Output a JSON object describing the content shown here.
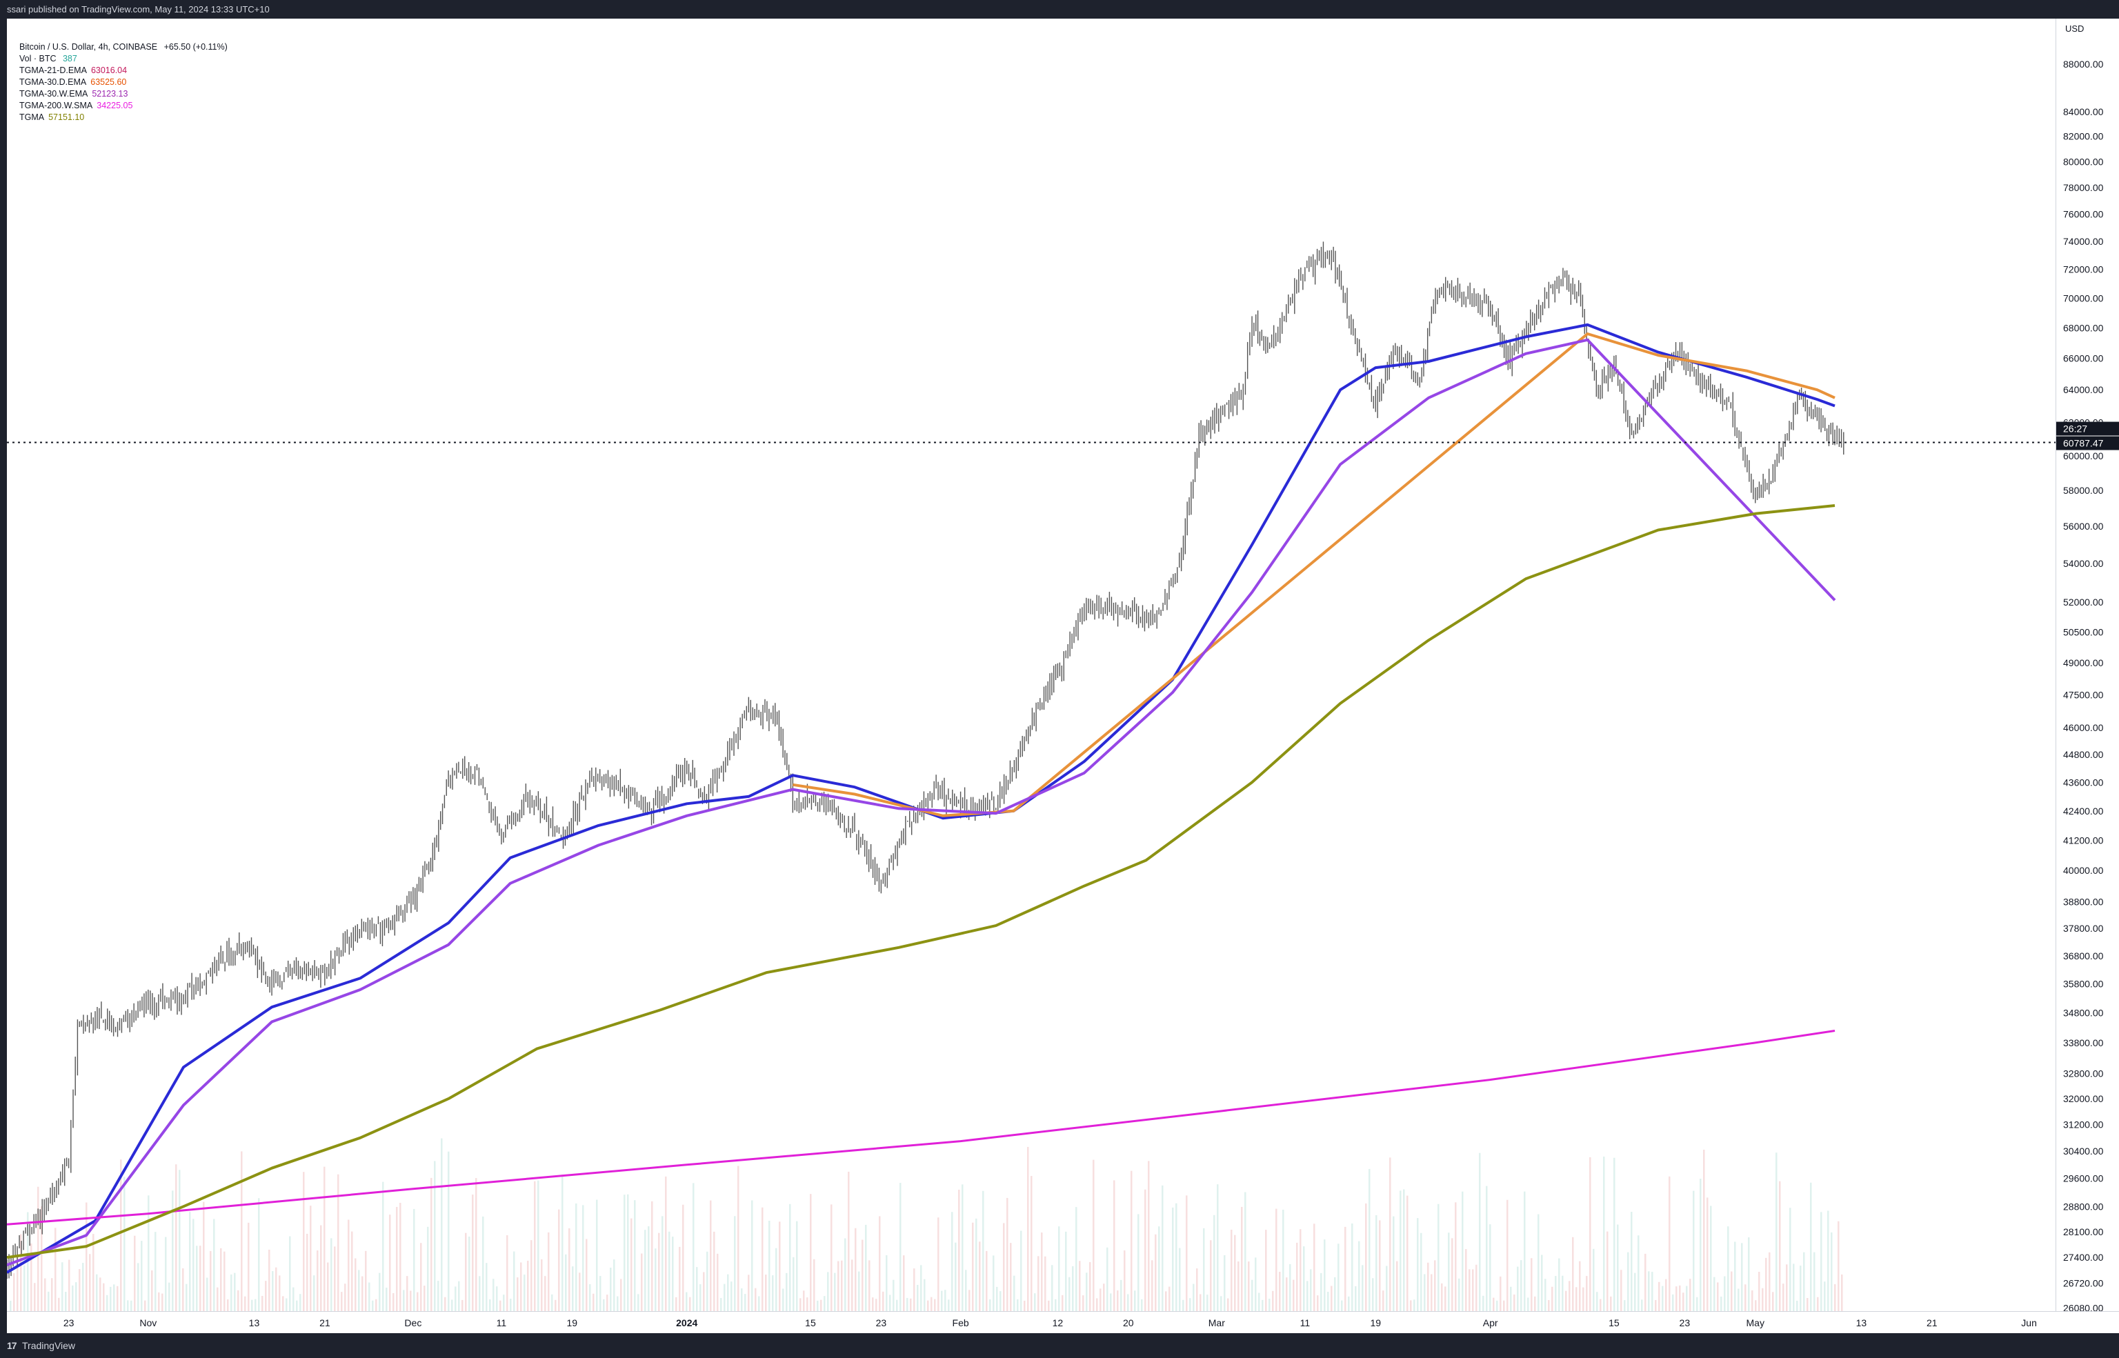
{
  "publish_bar": "ssari published on TradingView.com, May 11, 2024 13:33 UTC+10",
  "footer": {
    "logo": "17",
    "brand": "TradingView"
  },
  "price_axis": {
    "currency": "USD"
  },
  "legend": {
    "title": "Bitcoin / U.S. Dollar, 4h, COINBASE",
    "change": "+65.50 (+0.11%)",
    "vol_label": "Vol · BTC",
    "vol_value": "387",
    "indicators": [
      {
        "name": "TGMA-21-D.EMA",
        "value": "63016.04",
        "color": "#c2185b"
      },
      {
        "name": "TGMA-30.D.EMA",
        "value": "63525.60",
        "color": "#e65100"
      },
      {
        "name": "TGMA-30.W.EMA",
        "value": "52123.13",
        "color": "#9c27b0"
      },
      {
        "name": "TGMA-200.W.SMA",
        "value": "34225.05",
        "color": "#e91ee0"
      },
      {
        "name": "TGMA",
        "value": "57151.10",
        "color": "#808000"
      }
    ]
  },
  "badges": {
    "countdown": "26:27",
    "last_price": "60787.47"
  },
  "colors": {
    "candle": "#555555",
    "dark_blue": "#2a2ad6",
    "purple": "#8c1ae6",
    "orange": "#e8923a",
    "yellow": "#d8d42a",
    "rose": "#c06878",
    "magenta": "#e020d8",
    "olive": "#8c9212",
    "violet": "#9646e6",
    "last_price_line": "#131722"
  },
  "chart_data": {
    "type": "line",
    "title": "Bitcoin / U.S. Dollar, 4h, COINBASE",
    "y_scale": "log",
    "ylim": [
      26000,
      92000
    ],
    "x_range": [
      "2023-10-16",
      "2024-06-04"
    ],
    "price_ticks": [
      88000,
      84000,
      82000,
      80000,
      78000,
      76000,
      74000,
      72000,
      70000,
      68000,
      66000,
      64000,
      62000,
      60000,
      58000,
      56000,
      54000,
      52000,
      50500,
      49000,
      47500,
      46000,
      44800,
      43600,
      42400,
      41200,
      40000,
      38800,
      37800,
      36800,
      35800,
      34800,
      33800,
      32800,
      32000,
      31200,
      30400,
      29600,
      28800,
      28100,
      27400,
      26720,
      26080
    ],
    "time_ticks": [
      {
        "label": "23",
        "date": "2023-10-23"
      },
      {
        "label": "Nov",
        "date": "2023-11-01"
      },
      {
        "label": "13",
        "date": "2023-11-13"
      },
      {
        "label": "21",
        "date": "2023-11-21"
      },
      {
        "label": "Dec",
        "date": "2023-12-01"
      },
      {
        "label": "11",
        "date": "2023-12-11"
      },
      {
        "label": "19",
        "date": "2023-12-19"
      },
      {
        "label": "2024",
        "date": "2024-01-01"
      },
      {
        "label": "15",
        "date": "2024-01-15"
      },
      {
        "label": "23",
        "date": "2024-01-23"
      },
      {
        "label": "Feb",
        "date": "2024-02-01"
      },
      {
        "label": "12",
        "date": "2024-02-12"
      },
      {
        "label": "20",
        "date": "2024-02-20"
      },
      {
        "label": "Mar",
        "date": "2024-03-01"
      },
      {
        "label": "11",
        "date": "2024-03-11"
      },
      {
        "label": "19",
        "date": "2024-03-19"
      },
      {
        "label": "Apr",
        "date": "2024-04-01"
      },
      {
        "label": "15",
        "date": "2024-04-15"
      },
      {
        "label": "23",
        "date": "2024-04-23"
      },
      {
        "label": "May",
        "date": "2024-05-01"
      },
      {
        "label": "13",
        "date": "2024-05-13"
      },
      {
        "label": "21",
        "date": "2024-05-21"
      },
      {
        "label": "Jun",
        "date": "2024-06-01"
      }
    ],
    "last_price": 60787.47,
    "price": [
      [
        "2023-10-16",
        27200
      ],
      [
        "2023-10-20",
        28600
      ],
      [
        "2023-10-23",
        30200
      ],
      [
        "2023-10-24",
        34200
      ],
      [
        "2023-10-26",
        34600
      ],
      [
        "2023-10-29",
        34400
      ],
      [
        "2023-11-01",
        35200
      ],
      [
        "2023-11-05",
        35300
      ],
      [
        "2023-11-09",
        36600
      ],
      [
        "2023-11-12",
        37200
      ],
      [
        "2023-11-15",
        35800
      ],
      [
        "2023-11-18",
        36400
      ],
      [
        "2023-11-21",
        36200
      ],
      [
        "2023-11-24",
        37600
      ],
      [
        "2023-11-28",
        37800
      ],
      [
        "2023-12-01",
        38900
      ],
      [
        "2023-12-03",
        40200
      ],
      [
        "2023-12-05",
        43900
      ],
      [
        "2023-12-08",
        44200
      ],
      [
        "2023-12-11",
        41300
      ],
      [
        "2023-12-14",
        43000
      ],
      [
        "2023-12-18",
        41200
      ],
      [
        "2023-12-21",
        43800
      ],
      [
        "2023-12-24",
        43500
      ],
      [
        "2023-12-28",
        42400
      ],
      [
        "2024-01-01",
        44300
      ],
      [
        "2024-01-03",
        42800
      ],
      [
        "2024-01-08",
        46900
      ],
      [
        "2024-01-11",
        46600
      ],
      [
        "2024-01-13",
        42800
      ],
      [
        "2024-01-17",
        42700
      ],
      [
        "2024-01-20",
        41500
      ],
      [
        "2024-01-23",
        39500
      ],
      [
        "2024-01-26",
        41800
      ],
      [
        "2024-01-29",
        43200
      ],
      [
        "2024-02-01",
        42600
      ],
      [
        "2024-02-05",
        42700
      ],
      [
        "2024-02-08",
        45200
      ],
      [
        "2024-02-10",
        47100
      ],
      [
        "2024-02-12",
        48500
      ],
      [
        "2024-02-15",
        51800
      ],
      [
        "2024-02-20",
        51500
      ],
      [
        "2024-02-23",
        51000
      ],
      [
        "2024-02-26",
        54500
      ],
      [
        "2024-02-28",
        61200
      ],
      [
        "2024-03-01",
        62200
      ],
      [
        "2024-03-04",
        64000
      ],
      [
        "2024-03-05",
        68300
      ],
      [
        "2024-03-07",
        66800
      ],
      [
        "2024-03-11",
        72200
      ],
      [
        "2024-03-14",
        73000
      ],
      [
        "2024-03-16",
        68500
      ],
      [
        "2024-03-19",
        62800
      ],
      [
        "2024-03-21",
        66700
      ],
      [
        "2024-03-24",
        64700
      ],
      [
        "2024-03-26",
        70800
      ],
      [
        "2024-03-29",
        70100
      ],
      [
        "2024-04-01",
        69500
      ],
      [
        "2024-04-03",
        65900
      ],
      [
        "2024-04-06",
        68800
      ],
      [
        "2024-04-09",
        71500
      ],
      [
        "2024-04-11",
        70500
      ],
      [
        "2024-04-13",
        63900
      ],
      [
        "2024-04-15",
        65500
      ],
      [
        "2024-04-17",
        61200
      ],
      [
        "2024-04-19",
        63500
      ],
      [
        "2024-04-22",
        66400
      ],
      [
        "2024-04-25",
        64300
      ],
      [
        "2024-04-28",
        63400
      ],
      [
        "2024-05-01",
        57500
      ],
      [
        "2024-05-03",
        59000
      ],
      [
        "2024-05-06",
        63500
      ],
      [
        "2024-05-08",
        62100
      ],
      [
        "2024-05-10",
        61000
      ],
      [
        "2024-05-11",
        60787
      ]
    ],
    "series": [
      {
        "name": "TGMA-21-D.EMA",
        "color": "#2a2ad6",
        "points": [
          [
            "2023-10-16",
            27000
          ],
          [
            "2023-10-26",
            28400
          ],
          [
            "2023-11-05",
            33000
          ],
          [
            "2023-11-15",
            35000
          ],
          [
            "2023-11-25",
            36000
          ],
          [
            "2023-12-05",
            38000
          ],
          [
            "2023-12-12",
            40500
          ],
          [
            "2023-12-22",
            41800
          ],
          [
            "2024-01-01",
            42700
          ],
          [
            "2024-01-08",
            43000
          ],
          [
            "2024-01-13",
            43900
          ],
          [
            "2024-01-20",
            43400
          ],
          [
            "2024-01-30",
            42100
          ],
          [
            "2024-02-07",
            42400
          ],
          [
            "2024-02-15",
            44500
          ],
          [
            "2024-02-25",
            48200
          ],
          [
            "2024-03-05",
            55000
          ],
          [
            "2024-03-15",
            64000
          ],
          [
            "2024-03-19",
            65400
          ],
          [
            "2024-03-25",
            65800
          ],
          [
            "2024-04-05",
            67400
          ],
          [
            "2024-04-12",
            68200
          ],
          [
            "2024-04-20",
            66400
          ],
          [
            "2024-04-30",
            64800
          ],
          [
            "2024-05-08",
            63400
          ],
          [
            "2024-05-10",
            63000
          ]
        ]
      },
      {
        "name": "TGMA-30.D.EMA",
        "color": "#e8923a",
        "points": [
          [
            "2024-01-13",
            43500
          ],
          [
            "2024-01-20",
            43100
          ],
          [
            "2024-01-30",
            42200
          ],
          [
            "2024-02-07",
            42400
          ],
          [
            "2024-04-12",
            67600
          ],
          [
            "2024-04-20",
            66200
          ],
          [
            "2024-04-30",
            65200
          ],
          [
            "2024-05-08",
            64000
          ],
          [
            "2024-05-10",
            63500
          ]
        ]
      },
      {
        "name": "TGMA-30.W.EMA",
        "color": "#9646e6",
        "points": [
          [
            "2023-10-16",
            27200
          ],
          [
            "2023-10-25",
            28000
          ],
          [
            "2023-11-05",
            31800
          ],
          [
            "2023-11-15",
            34500
          ],
          [
            "2023-11-25",
            35600
          ],
          [
            "2023-12-05",
            37200
          ],
          [
            "2023-12-12",
            39500
          ],
          [
            "2023-12-22",
            41000
          ],
          [
            "2024-01-01",
            42200
          ],
          [
            "2024-01-13",
            43300
          ],
          [
            "2024-01-25",
            42500
          ],
          [
            "2024-02-05",
            42300
          ],
          [
            "2024-02-15",
            44000
          ],
          [
            "2024-02-25",
            47600
          ],
          [
            "2024-03-05",
            52500
          ],
          [
            "2024-03-15",
            59500
          ],
          [
            "2024-03-25",
            63500
          ],
          [
            "2024-04-05",
            66300
          ],
          [
            "2024-04-12",
            67200
          ],
          [
            "2024-05-10",
            52100
          ]
        ]
      },
      {
        "name": "TGMA-200.W.SMA",
        "color": "#e020d8",
        "points": [
          [
            "2023-10-16",
            28300
          ],
          [
            "2023-11-01",
            28600
          ],
          [
            "2023-12-01",
            29300
          ],
          [
            "2024-01-01",
            30000
          ],
          [
            "2024-02-01",
            30700
          ],
          [
            "2024-03-01",
            31600
          ],
          [
            "2024-04-01",
            32600
          ],
          [
            "2024-05-01",
            33800
          ],
          [
            "2024-05-10",
            34200
          ]
        ]
      },
      {
        "name": "TGMA",
        "color": "#8c9212",
        "points": [
          [
            "2023-10-16",
            27400
          ],
          [
            "2023-10-25",
            27700
          ],
          [
            "2023-11-05",
            28800
          ],
          [
            "2023-11-15",
            29900
          ],
          [
            "2023-11-25",
            30800
          ],
          [
            "2023-12-05",
            32000
          ],
          [
            "2023-12-15",
            33600
          ],
          [
            "2023-12-29",
            34900
          ],
          [
            "2024-01-10",
            36200
          ],
          [
            "2024-01-25",
            37100
          ],
          [
            "2024-02-05",
            37900
          ],
          [
            "2024-02-15",
            39400
          ],
          [
            "2024-02-22",
            40400
          ],
          [
            "2024-03-05",
            43600
          ],
          [
            "2024-03-15",
            47100
          ],
          [
            "2024-03-25",
            50100
          ],
          [
            "2024-04-05",
            53200
          ],
          [
            "2024-04-20",
            55800
          ],
          [
            "2024-05-01",
            56700
          ],
          [
            "2024-05-10",
            57150
          ]
        ]
      }
    ]
  }
}
